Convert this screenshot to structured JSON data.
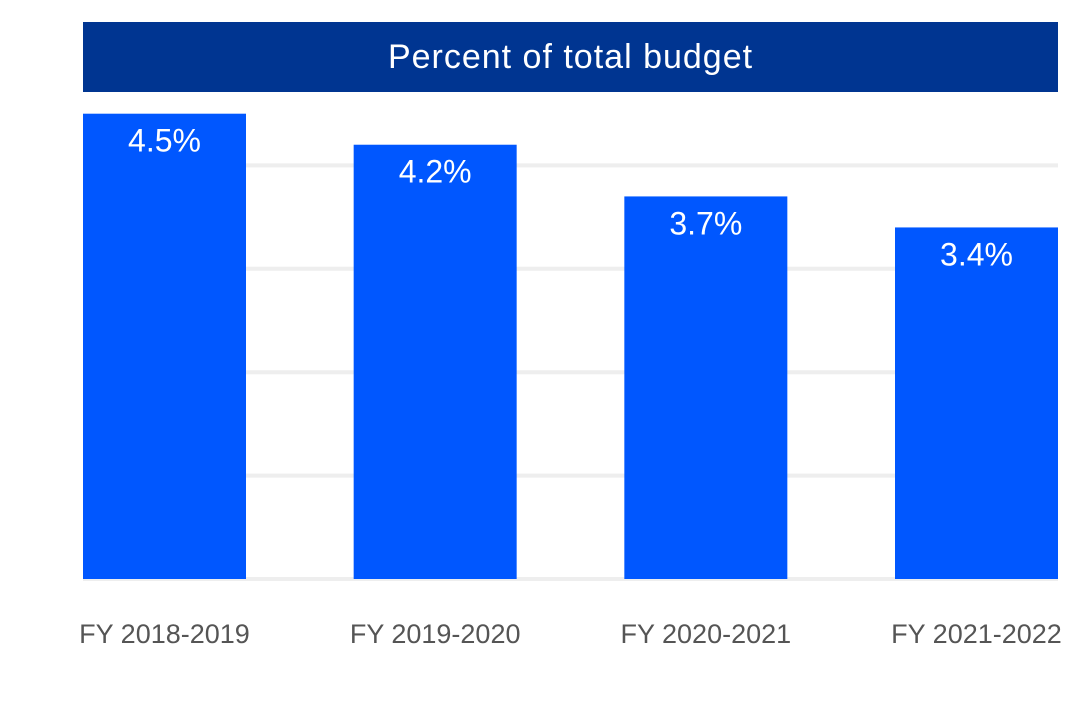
{
  "chart_data": {
    "type": "bar",
    "title": "Percent of total budget",
    "categories": [
      "FY 2018-2019",
      "FY 2019-2020",
      "FY 2020-2021",
      "FY 2021-2022"
    ],
    "values": [
      4.5,
      4.2,
      3.7,
      3.4
    ],
    "data_labels": [
      "4.5%",
      "4.2%",
      "3.7%",
      "3.4%"
    ],
    "xlabel": "",
    "ylabel": "",
    "ylim": [
      0,
      5
    ],
    "grid": true,
    "legend": "none",
    "colors": {
      "bar": "#0057FF",
      "title_bg": "#003591",
      "title_text": "#FFFFFF",
      "data_label": "#FFFFFF",
      "tick_label": "#555555",
      "grid": "#EEEEEE"
    }
  }
}
